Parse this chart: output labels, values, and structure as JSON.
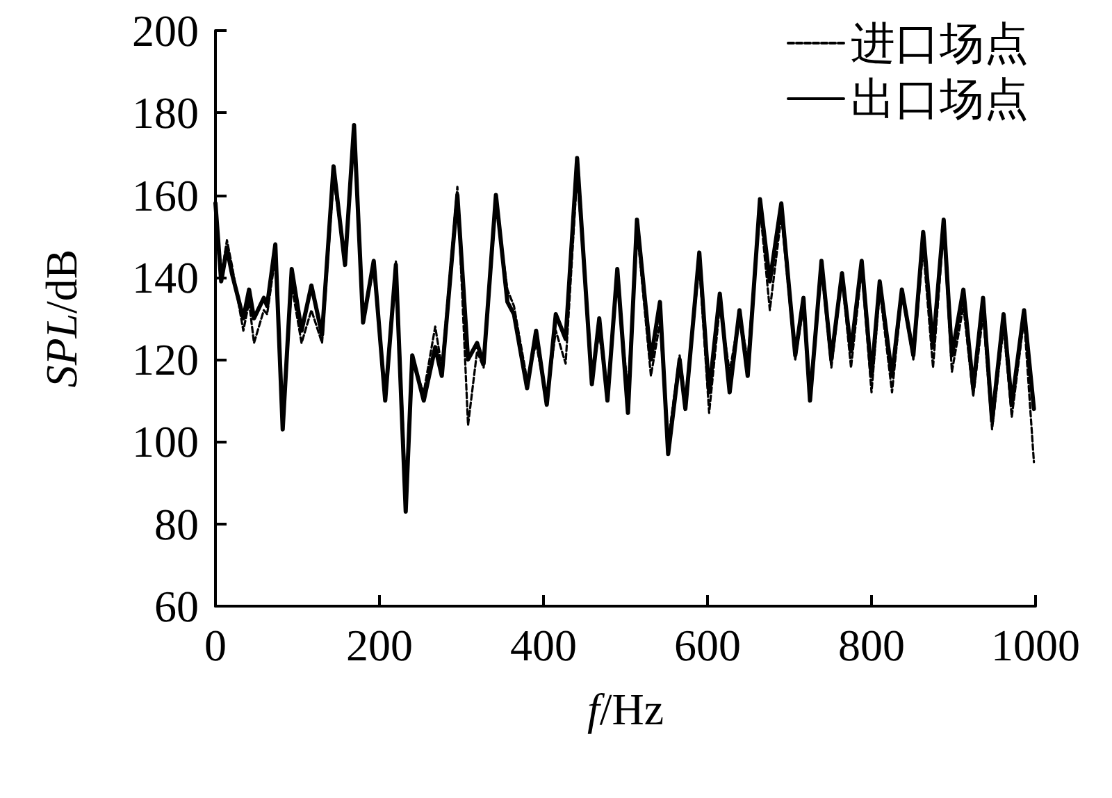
{
  "chart_data": {
    "type": "line",
    "xlabel": "f/Hz",
    "ylabel": "SPL/dB",
    "xlim": [
      0,
      1000
    ],
    "xticks": [
      0,
      200,
      400,
      600,
      800,
      1000
    ],
    "ylim": [
      60,
      200
    ],
    "yticks": [
      60,
      80,
      100,
      120,
      140,
      160,
      180,
      200
    ],
    "grid": false,
    "legend": "top right",
    "marker": "none",
    "x": [
      0,
      7,
      14,
      20,
      34,
      41,
      47,
      59,
      63,
      73,
      82,
      93,
      105,
      117,
      130,
      144,
      158,
      169,
      180,
      193,
      207,
      220,
      232,
      240,
      254,
      268,
      276,
      295,
      308,
      319,
      327,
      342,
      356,
      364,
      380,
      391,
      404,
      415,
      427,
      441,
      459,
      468,
      478,
      490,
      503,
      514,
      531,
      542,
      552,
      566,
      573,
      590,
      602,
      615,
      627,
      639,
      649,
      664,
      676,
      690,
      707,
      717,
      725,
      739,
      751,
      764,
      775,
      788,
      800,
      810,
      825,
      837,
      851,
      863,
      875,
      888,
      898,
      912,
      924,
      936,
      947,
      961,
      971,
      986,
      998
    ],
    "series": [
      {
        "name": "进口场点",
        "color": "#000000",
        "line_style": "dashed",
        "values": [
          152,
          140,
          149,
          143,
          127,
          134,
          124,
          132,
          131,
          145,
          105,
          138,
          124,
          132,
          124,
          164,
          144,
          175,
          130,
          142,
          112,
          144,
          88,
          119,
          112,
          128,
          118,
          162,
          104,
          122,
          118,
          158,
          137,
          133,
          115,
          124,
          110,
          127,
          119,
          165,
          117,
          126,
          113,
          139,
          112,
          152,
          116,
          129,
          100,
          121,
          110,
          143,
          107,
          133,
          117,
          131,
          120,
          157,
          132,
          155,
          120,
          133,
          113,
          142,
          118,
          140,
          118,
          142,
          112,
          137,
          112,
          136,
          120,
          147,
          118,
          152,
          117,
          133,
          111,
          131,
          103,
          128,
          106,
          130,
          95
        ]
      },
      {
        "name": "出口场点",
        "color": "#000000",
        "line_style": "solid",
        "values": [
          158,
          139,
          147,
          141,
          130,
          137,
          130,
          135,
          133,
          148,
          103,
          142,
          127,
          138,
          126,
          167,
          143,
          177,
          129,
          144,
          110,
          143,
          83,
          121,
          110,
          123,
          116,
          160,
          120,
          124,
          119,
          160,
          134,
          131,
          113,
          127,
          109,
          131,
          125,
          169,
          114,
          130,
          110,
          142,
          107,
          154,
          120,
          134,
          97,
          120,
          108,
          146,
          112,
          136,
          112,
          132,
          116,
          159,
          139,
          158,
          121,
          135,
          110,
          144,
          120,
          141,
          122,
          144,
          116,
          139,
          116,
          137,
          121,
          151,
          123,
          154,
          121,
          137,
          113,
          135,
          105,
          131,
          109,
          132,
          108
        ]
      }
    ]
  }
}
